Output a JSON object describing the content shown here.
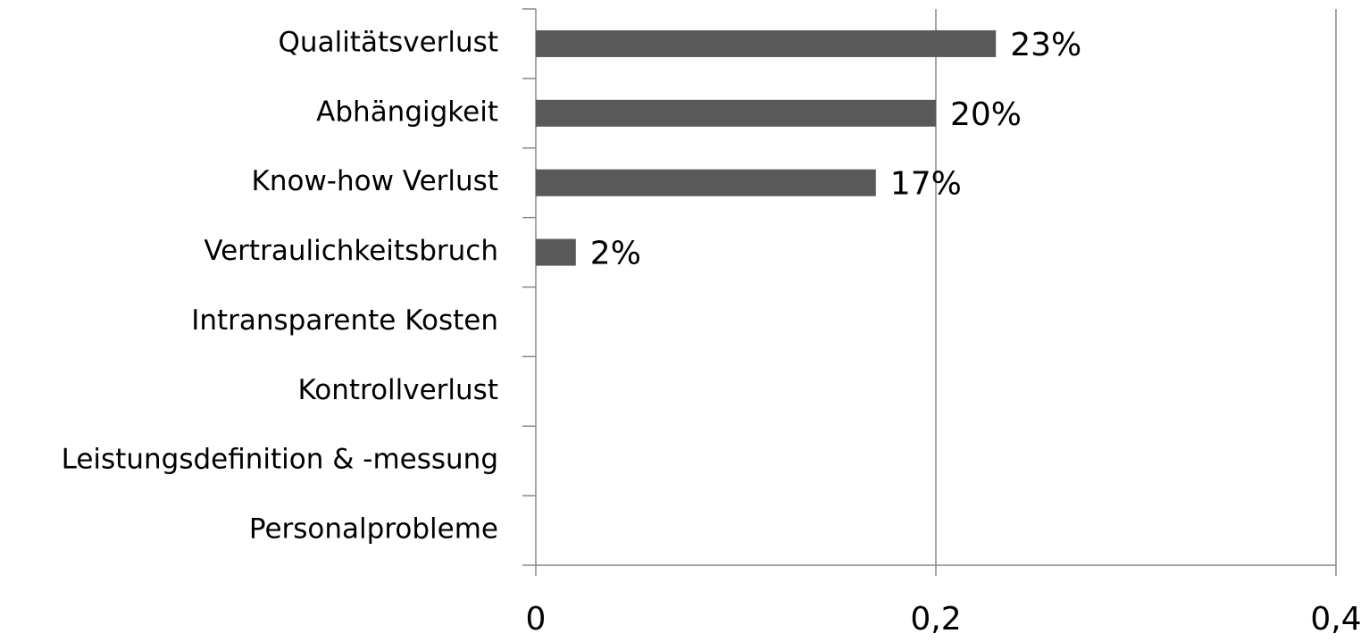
{
  "chart_data": {
    "type": "bar",
    "orientation": "horizontal",
    "categories": [
      "Qualitätsverlust",
      "Abhängigkeit",
      "Know-how Verlust",
      "Vertraulichkeitsbruch",
      "Intransparente Kosten",
      "Kontrollverlust",
      "Leistungsdefinition & -messung",
      "Personalprobleme"
    ],
    "values": [
      0.23,
      0.2,
      0.17,
      0.02,
      0,
      0,
      0,
      0
    ],
    "value_labels": [
      "23%",
      "20%",
      "17%",
      "2%",
      null,
      null,
      null,
      null
    ],
    "color": "#595959",
    "xlim": [
      0,
      0.4
    ],
    "xticks": [
      0,
      {
        "value": 0.2,
        "label": "0,2"
      },
      {
        "value": 0.4,
        "label": "0,4"
      }
    ],
    "grid": true
  }
}
